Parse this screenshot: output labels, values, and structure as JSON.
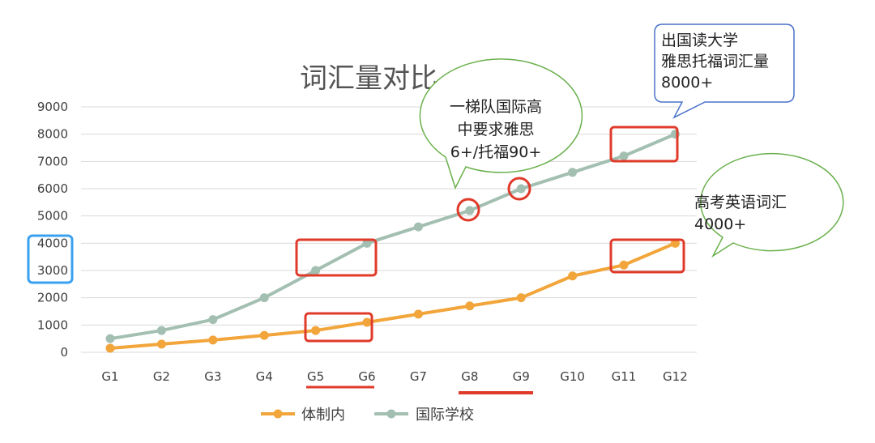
{
  "chart_data": {
    "type": "line",
    "title": "词汇量对比",
    "xlabel": "",
    "ylabel": "",
    "categories": [
      "G1",
      "G2",
      "G3",
      "G4",
      "G5",
      "G6",
      "G7",
      "G8",
      "G9",
      "G10",
      "G11",
      "G12"
    ],
    "yticks": [
      "0",
      "1000",
      "2000",
      "3000",
      "4000",
      "5000",
      "6000",
      "7000",
      "8000",
      "9000"
    ],
    "ylim": [
      0,
      9000
    ],
    "grid": true,
    "legend_position": "bottom",
    "series": [
      {
        "name": "体制内",
        "color": "#f2a53a",
        "values": [
          150,
          300,
          450,
          620,
          800,
          1100,
          1400,
          1700,
          2000,
          2800,
          3200,
          4000
        ]
      },
      {
        "name": "国际学校",
        "color": "#a3bfb2",
        "values": [
          500,
          800,
          1200,
          2000,
          3000,
          4000,
          4600,
          5200,
          6000,
          6600,
          7200,
          8000
        ]
      }
    ]
  },
  "callouts": {
    "international_school": {
      "lines": [
        "一梯队国际高",
        "中要求雅思",
        "6+/托福90+"
      ],
      "color": "#6ab04c"
    },
    "study_abroad": {
      "lines": [
        "出国读大学",
        "雅思托福词汇量",
        "8000+"
      ],
      "color": "#4a72c9"
    },
    "gaokao": {
      "lines": [
        "高考英语词汇",
        "4000+"
      ],
      "color": "#6ab04c"
    }
  },
  "highlight_colors": {
    "red": "#e03a2a",
    "blue": "#3aa0f0"
  }
}
